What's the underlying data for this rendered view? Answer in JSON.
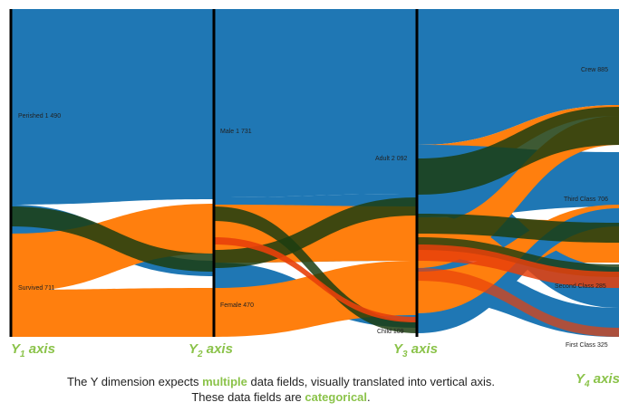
{
  "chart_data": {
    "type": "parallel_sets",
    "axes": [
      {
        "axis_id": "1",
        "categories": [
          {
            "name": "Perished",
            "count": "1 490"
          },
          {
            "name": "Survived",
            "count": "711"
          }
        ]
      },
      {
        "axis_id": "2",
        "categories": [
          {
            "name": "Male",
            "count": "1 731"
          },
          {
            "name": "Female",
            "count": "470"
          }
        ]
      },
      {
        "axis_id": "3",
        "categories": [
          {
            "name": "Adult",
            "count": "2 092"
          },
          {
            "name": "Child",
            "count": "109"
          }
        ]
      },
      {
        "axis_id": "4",
        "categories": [
          {
            "name": "Crew",
            "count": "885"
          },
          {
            "name": "Third Class",
            "count": "706"
          },
          {
            "name": "Second Class",
            "count": "285"
          },
          {
            "name": "First Class",
            "count": "325"
          }
        ]
      }
    ],
    "series": [
      {
        "name": "Perished",
        "color": "#1f77b4"
      },
      {
        "name": "Survived",
        "color": "#ff7f0e"
      }
    ],
    "ribbon_colors": {
      "perished": "#1f77b4",
      "survived": "#ff7f0e",
      "highlight": "#1c3d10"
    }
  },
  "axis_labels": [
    {
      "letter": "Y",
      "sub": "1",
      "word": "axis"
    },
    {
      "letter": "Y",
      "sub": "2",
      "word": "axis"
    },
    {
      "letter": "Y",
      "sub": "3",
      "word": "axis"
    },
    {
      "letter": "Y",
      "sub": "4",
      "word": "axis"
    }
  ],
  "caption": {
    "line1_a": "The Y dimension expects ",
    "line1_hl": "multiple",
    "line1_b": " data fields, visually translated into vertical axis.",
    "line2_a": "These data fields are ",
    "line2_hl": "categorical",
    "line2_b": "."
  },
  "accent_color": "#8bc34a"
}
